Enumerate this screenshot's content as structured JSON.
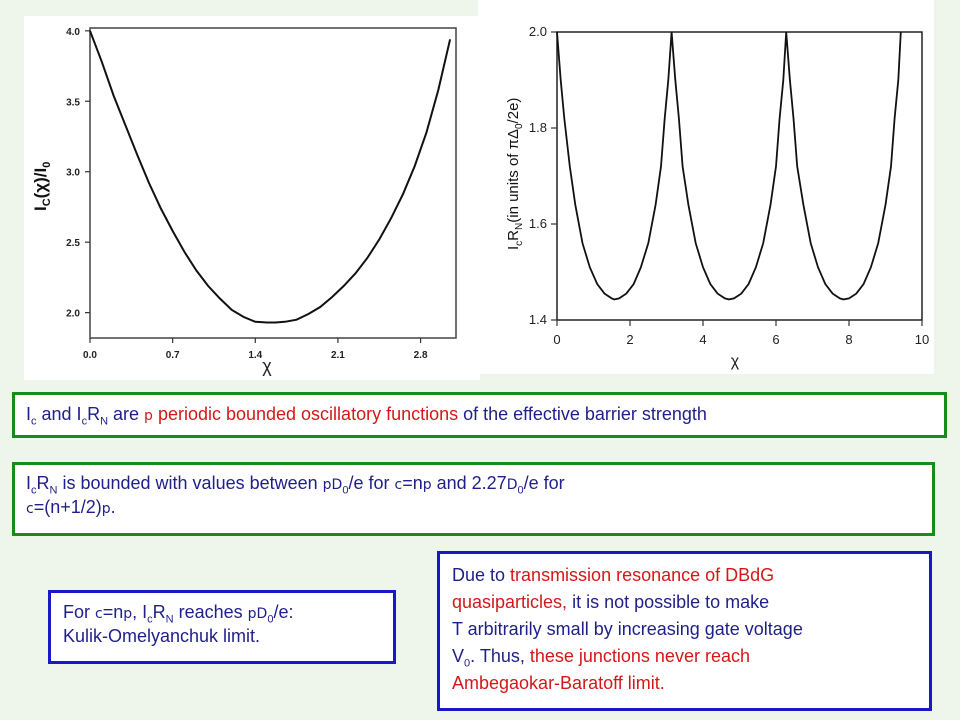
{
  "chart_data": [
    {
      "type": "line",
      "title": "",
      "xlabel": "χ",
      "ylabel": "I_c(χ)/I_0",
      "xlim": [
        0.0,
        3.1
      ],
      "ylim": [
        1.82,
        4.02
      ],
      "xticks": [
        "0.0",
        "0.7",
        "1.4",
        "2.1",
        "2.8"
      ],
      "yticks": [
        "2.0",
        "2.5",
        "3.0",
        "3.5",
        "4.0"
      ],
      "grid": false,
      "series": [
        {
          "x": [
            0.0,
            0.1,
            0.2,
            0.3,
            0.4,
            0.5,
            0.6,
            0.7,
            0.8,
            0.9,
            1.0,
            1.1,
            1.2,
            1.3,
            1.4,
            1.5,
            1.57,
            1.65,
            1.75,
            1.85,
            1.95,
            2.05,
            2.15,
            2.25,
            2.35,
            2.45,
            2.55,
            2.65,
            2.75,
            2.85,
            2.95,
            3.05
          ],
          "y": [
            4.0,
            3.78,
            3.54,
            3.33,
            3.12,
            2.92,
            2.74,
            2.58,
            2.43,
            2.3,
            2.19,
            2.1,
            2.02,
            1.97,
            1.935,
            1.93,
            1.93,
            1.935,
            1.95,
            1.99,
            2.04,
            2.11,
            2.19,
            2.28,
            2.39,
            2.52,
            2.67,
            2.84,
            3.04,
            3.28,
            3.58,
            3.94
          ]
        }
      ]
    },
    {
      "type": "line",
      "title": "",
      "xlabel": "χ",
      "ylabel": "I_cR_N (in units of πΔ_0/2e)",
      "xlim": [
        0,
        10
      ],
      "ylim": [
        1.4,
        2.0
      ],
      "xticks": [
        "0",
        "2",
        "4",
        "6",
        "8",
        "10"
      ],
      "yticks": [
        "1.4",
        "1.6",
        "1.8",
        "2.0"
      ],
      "grid": false,
      "series": [
        {
          "x": [
            0.0,
            0.1,
            0.2,
            0.35,
            0.5,
            0.7,
            0.9,
            1.1,
            1.3,
            1.5,
            1.57,
            1.7,
            1.9,
            2.1,
            2.3,
            2.5,
            2.7,
            2.85,
            2.95,
            3.05,
            3.14,
            3.24,
            3.34,
            3.44,
            3.6,
            3.8,
            4.0,
            4.2,
            4.4,
            4.6,
            4.71,
            4.85,
            5.05,
            5.25,
            5.45,
            5.65,
            5.85,
            6.0,
            6.1,
            6.2,
            6.28,
            6.38,
            6.48,
            6.58,
            6.75,
            6.95,
            7.15,
            7.35,
            7.55,
            7.75,
            7.85,
            8.0,
            8.2,
            8.4,
            8.6,
            8.8,
            9.0,
            9.15,
            9.25,
            9.35,
            9.42
          ],
          "y": [
            2.0,
            1.9,
            1.82,
            1.72,
            1.64,
            1.56,
            1.51,
            1.475,
            1.455,
            1.445,
            1.443,
            1.445,
            1.455,
            1.475,
            1.51,
            1.56,
            1.64,
            1.72,
            1.82,
            1.9,
            2.0,
            1.9,
            1.82,
            1.72,
            1.64,
            1.56,
            1.51,
            1.475,
            1.455,
            1.445,
            1.443,
            1.445,
            1.455,
            1.475,
            1.51,
            1.56,
            1.64,
            1.72,
            1.82,
            1.9,
            2.0,
            1.9,
            1.82,
            1.72,
            1.64,
            1.56,
            1.51,
            1.475,
            1.455,
            1.445,
            1.443,
            1.445,
            1.455,
            1.475,
            1.51,
            1.56,
            1.64,
            1.72,
            1.82,
            1.9,
            2.0
          ]
        }
      ]
    }
  ],
  "charts": {
    "left": {
      "ylabel": "I",
      "ylabel_sub": "C",
      "ylabel_rest": "(χ)/I",
      "ylabel_sub2": "0",
      "xlabel": "χ"
    },
    "right": {
      "ylabel": "I",
      "ylabel_sub": "c",
      "ylabel_mid": "R",
      "ylabel_sub2": "N",
      "ylabel_rest": "(in units of πΔ",
      "ylabel_sub3": "0",
      "ylabel_end": "/2e)",
      "xlabel": "χ"
    }
  },
  "text_boxes": {
    "box1": {
      "a": "I",
      "a_sub": "c",
      "b": " and I",
      "b_sub": "c",
      "c": "R",
      "c_sub": "N",
      "d": " are ",
      "sym1": "p",
      "e": " periodic bounded oscillatory functions",
      "f": " of  the effective barrier strength"
    },
    "box2": {
      "a": "I",
      "a_sub": "c",
      "b": "R",
      "b_sub": "N",
      "c": " is bounded with values between ",
      "sym1": "pD",
      "sub1": "0",
      "d": "/e for ",
      "sym2": "c",
      "e": "=n",
      "sym3": "p",
      "f": " and  2.27",
      "sym4": "D",
      "sub2": "0",
      "g": "/e for",
      "sym5": "c",
      "h": "=(n+1/2)",
      "sym6": "p",
      "i": "."
    },
    "box3": {
      "a": "For ",
      "sym1": "c",
      "b": "=n",
      "sym2": "p",
      "c": ", I",
      "c_sub": "c",
      "d": "R",
      "d_sub": "N",
      "e": " reaches ",
      "sym3": "pD",
      "sub1": "0",
      "f": "/e:",
      "g": "Kulik-Omelyanchuk limit."
    },
    "box4": {
      "a": "Due to ",
      "b": "transmission resonance of DBdG",
      "c": "quasiparticles,",
      "d": " it is not possible to make",
      "e": "T arbitrarily small by increasing gate voltage",
      "f": "V",
      "f_sub": "0",
      "g": ". Thus, ",
      "h": "these junctions never reach",
      "i": "Ambegaokar-Baratoff limit."
    }
  }
}
